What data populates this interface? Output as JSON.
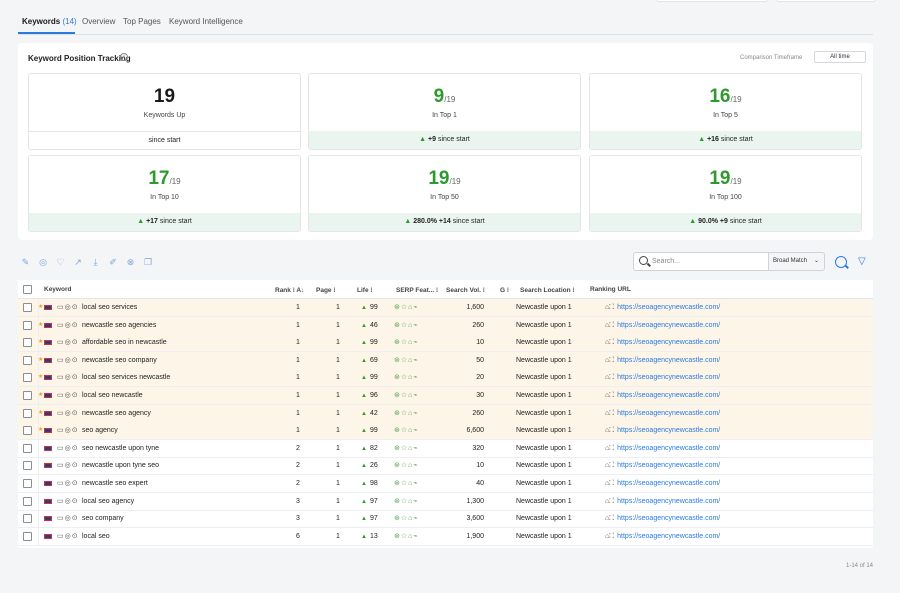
{
  "tabs": [
    {
      "label": "Keywords",
      "count": "(14)",
      "active": true
    },
    {
      "label": "Overview"
    },
    {
      "label": "Top Pages"
    },
    {
      "label": "Keyword Intelligence"
    }
  ],
  "tracking": {
    "title": "Keyword Position Tracking",
    "info_icon": "i",
    "timeframe_label": "Comparison Timeframe",
    "timeframe_value": "All time"
  },
  "stats": [
    {
      "big": "19",
      "den": "",
      "label": "Keywords Up",
      "foot_pct": "",
      "foot_delta": "",
      "foot_text": "since start",
      "tinted": false
    },
    {
      "big": "9",
      "den": "/19",
      "label": "In Top 1",
      "foot_pct": "",
      "foot_delta": "+9",
      "foot_text": "since start",
      "tinted": true
    },
    {
      "big": "16",
      "den": "/19",
      "label": "In Top 5",
      "foot_pct": "",
      "foot_delta": "+16",
      "foot_text": "since start",
      "tinted": true
    },
    {
      "big": "17",
      "den": "/19",
      "label": "In Top 10",
      "foot_pct": "",
      "foot_delta": "+17",
      "foot_text": "since start",
      "tinted": true
    },
    {
      "big": "19",
      "den": "/19",
      "label": "In Top 50",
      "foot_pct": "280.0%",
      "foot_delta": "+14",
      "foot_text": "since start",
      "tinted": true
    },
    {
      "big": "19",
      "den": "/19",
      "label": "In Top 100",
      "foot_pct": "90.0%",
      "foot_delta": "+9",
      "foot_text": "since start",
      "tinted": true
    }
  ],
  "toolbar": {
    "search_placeholder": "Search...",
    "match_value": "Broad Match",
    "icons": [
      "edit-icon",
      "tag-icon",
      "thumbs-up-icon",
      "chart-icon",
      "download-icon",
      "pencil-icon",
      "trash-icon",
      "copy-icon"
    ]
  },
  "table": {
    "headers": {
      "keyword": "Keyword",
      "rank": "Rank",
      "page": "Page",
      "life": "Life",
      "serp": "SERP Feat...",
      "volume": "Search Vol.",
      "g": "G",
      "location": "Search Location",
      "url": "Ranking URL"
    },
    "rows": [
      {
        "keyword": "local seo services",
        "rank": "1",
        "page": "1",
        "life": "99",
        "volume": "1,600",
        "location": "Newcastle upon 1",
        "url": "https://seoagencynewcastle.com/",
        "highlight": true
      },
      {
        "keyword": "newcastle seo agencies",
        "rank": "1",
        "page": "1",
        "life": "46",
        "volume": "260",
        "location": "Newcastle upon 1",
        "url": "https://seoagencynewcastle.com/",
        "highlight": true
      },
      {
        "keyword": "affordable seo in newcastle",
        "rank": "1",
        "page": "1",
        "life": "99",
        "volume": "10",
        "location": "Newcastle upon 1",
        "url": "https://seoagencynewcastle.com/",
        "highlight": true
      },
      {
        "keyword": "newcastle seo company",
        "rank": "1",
        "page": "1",
        "life": "69",
        "volume": "50",
        "location": "Newcastle upon 1",
        "url": "https://seoagencynewcastle.com/",
        "highlight": true
      },
      {
        "keyword": "local seo services newcastle",
        "rank": "1",
        "page": "1",
        "life": "99",
        "volume": "20",
        "location": "Newcastle upon 1",
        "url": "https://seoagencynewcastle.com/",
        "highlight": true
      },
      {
        "keyword": "local seo newcastle",
        "rank": "1",
        "page": "1",
        "life": "96",
        "volume": "30",
        "location": "Newcastle upon 1",
        "url": "https://seoagencynewcastle.com/",
        "highlight": true
      },
      {
        "keyword": "newcastle seo agency",
        "rank": "1",
        "page": "1",
        "life": "42",
        "volume": "260",
        "location": "Newcastle upon 1",
        "url": "https://seoagencynewcastle.com/",
        "highlight": true
      },
      {
        "keyword": "seo agency",
        "rank": "1",
        "page": "1",
        "life": "99",
        "volume": "6,600",
        "location": "Newcastle upon 1",
        "url": "https://seoagencynewcastle.com/",
        "highlight": true
      },
      {
        "keyword": "seo newcastle upon tyne",
        "rank": "2",
        "page": "1",
        "life": "82",
        "volume": "320",
        "location": "Newcastle upon 1",
        "url": "https://seoagencynewcastle.com/",
        "highlight": false
      },
      {
        "keyword": "newcastle upon tyne seo",
        "rank": "2",
        "page": "1",
        "life": "26",
        "volume": "10",
        "location": "Newcastle upon 1",
        "url": "https://seoagencynewcastle.com/",
        "highlight": false
      },
      {
        "keyword": "newcastle seo expert",
        "rank": "2",
        "page": "1",
        "life": "98",
        "volume": "40",
        "location": "Newcastle upon 1",
        "url": "https://seoagencynewcastle.com/",
        "highlight": false
      },
      {
        "keyword": "local seo agency",
        "rank": "3",
        "page": "1",
        "life": "97",
        "volume": "1,300",
        "location": "Newcastle upon 1",
        "url": "https://seoagencynewcastle.com/",
        "highlight": false
      },
      {
        "keyword": "seo company",
        "rank": "3",
        "page": "1",
        "life": "97",
        "volume": "3,600",
        "location": "Newcastle upon 1",
        "url": "https://seoagencynewcastle.com/",
        "highlight": false
      },
      {
        "keyword": "local seo",
        "rank": "6",
        "page": "1",
        "life": "13",
        "volume": "1,900",
        "location": "Newcastle upon 1",
        "url": "https://seoagencynewcastle.com/",
        "highlight": false
      }
    ]
  },
  "pager": "1-14 of 14",
  "colors": {
    "accent": "#2a7ae2",
    "positive": "#2e9a2e",
    "highlight_row": "#fdf5e8",
    "tinted_footer": "#eaf5f0"
  }
}
